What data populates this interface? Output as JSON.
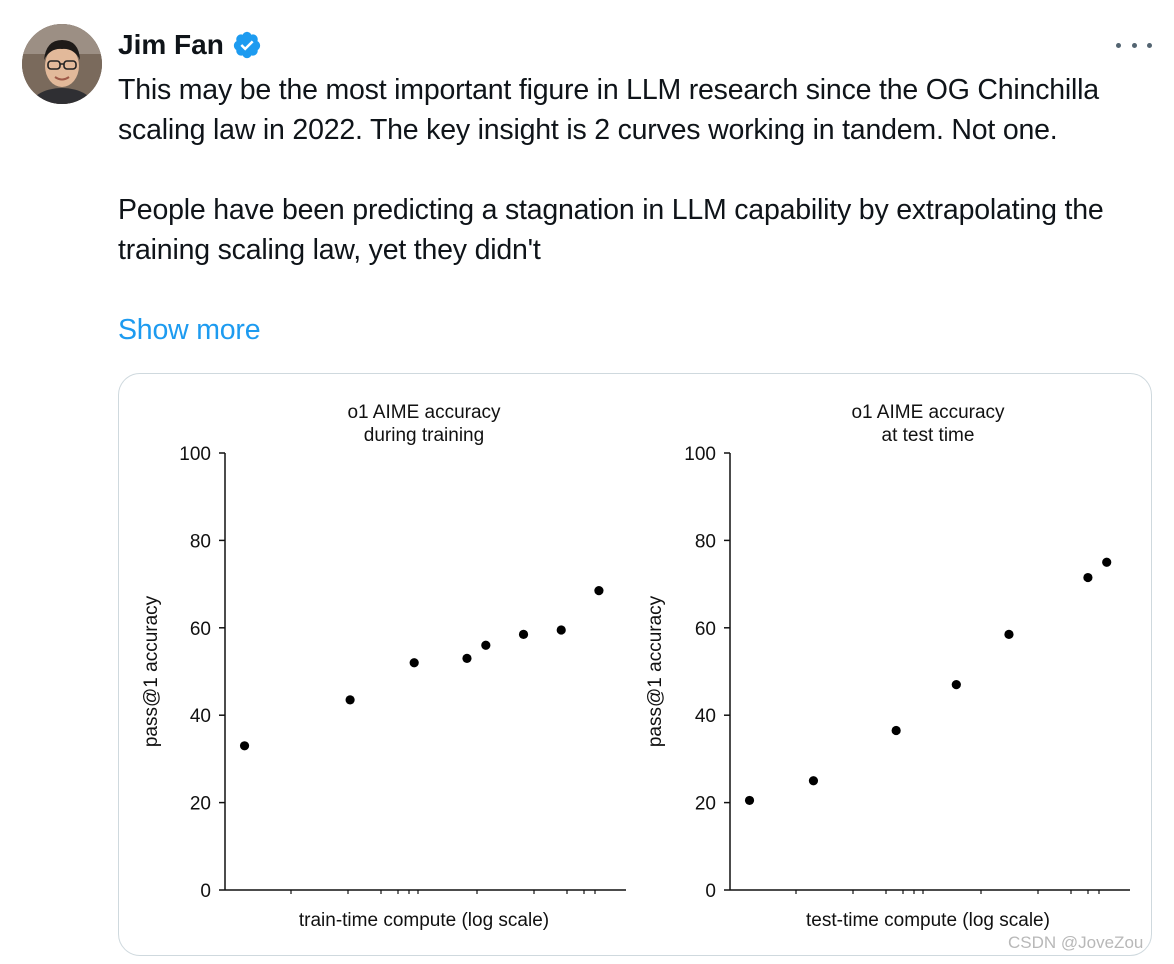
{
  "tweet": {
    "author": "Jim Fan",
    "paragraph1": "This may be the most important figure in LLM research since the OG Chinchilla scaling law in 2022. The key insight is 2 curves working in tandem. Not one.",
    "paragraph2": "People have been predicting a stagnation in LLM capability by extrapolating the training scaling law, yet they didn't",
    "show_more": "Show more"
  },
  "colors": {
    "link": "#1d9bf0",
    "verified_badge": "#1d9bf0",
    "text": "#0f1419",
    "muted": "#536471"
  },
  "icons": {
    "verified": "verified-badge-icon",
    "more": "more-options-icon"
  },
  "chart_data": [
    {
      "type": "scatter",
      "title": "o1 AIME accuracy\nduring training",
      "xlabel": "train-time compute (log scale)",
      "ylabel": "pass@1 accuracy",
      "ylim": [
        0,
        100
      ],
      "yticks": [
        0,
        20,
        40,
        60,
        80,
        100
      ],
      "x_log_units": [
        0.1,
        1.5,
        2.35,
        3.05,
        3.3,
        3.8,
        4.3,
        4.8
      ],
      "y": [
        33,
        43.5,
        52,
        53,
        56,
        58.5,
        59.5,
        68.5
      ]
    },
    {
      "type": "scatter",
      "title": "o1 AIME accuracy\nat test time",
      "xlabel": "test-time compute (log scale)",
      "ylabel": "pass@1 accuracy",
      "ylim": [
        0,
        100
      ],
      "yticks": [
        0,
        20,
        40,
        60,
        80,
        100
      ],
      "x_log_units": [
        0.1,
        0.95,
        2.05,
        2.85,
        3.55,
        4.6,
        4.85
      ],
      "y": [
        20.5,
        25,
        36.5,
        47,
        58.5,
        71.5,
        75
      ]
    }
  ],
  "watermark": "CSDN @JoveZou"
}
